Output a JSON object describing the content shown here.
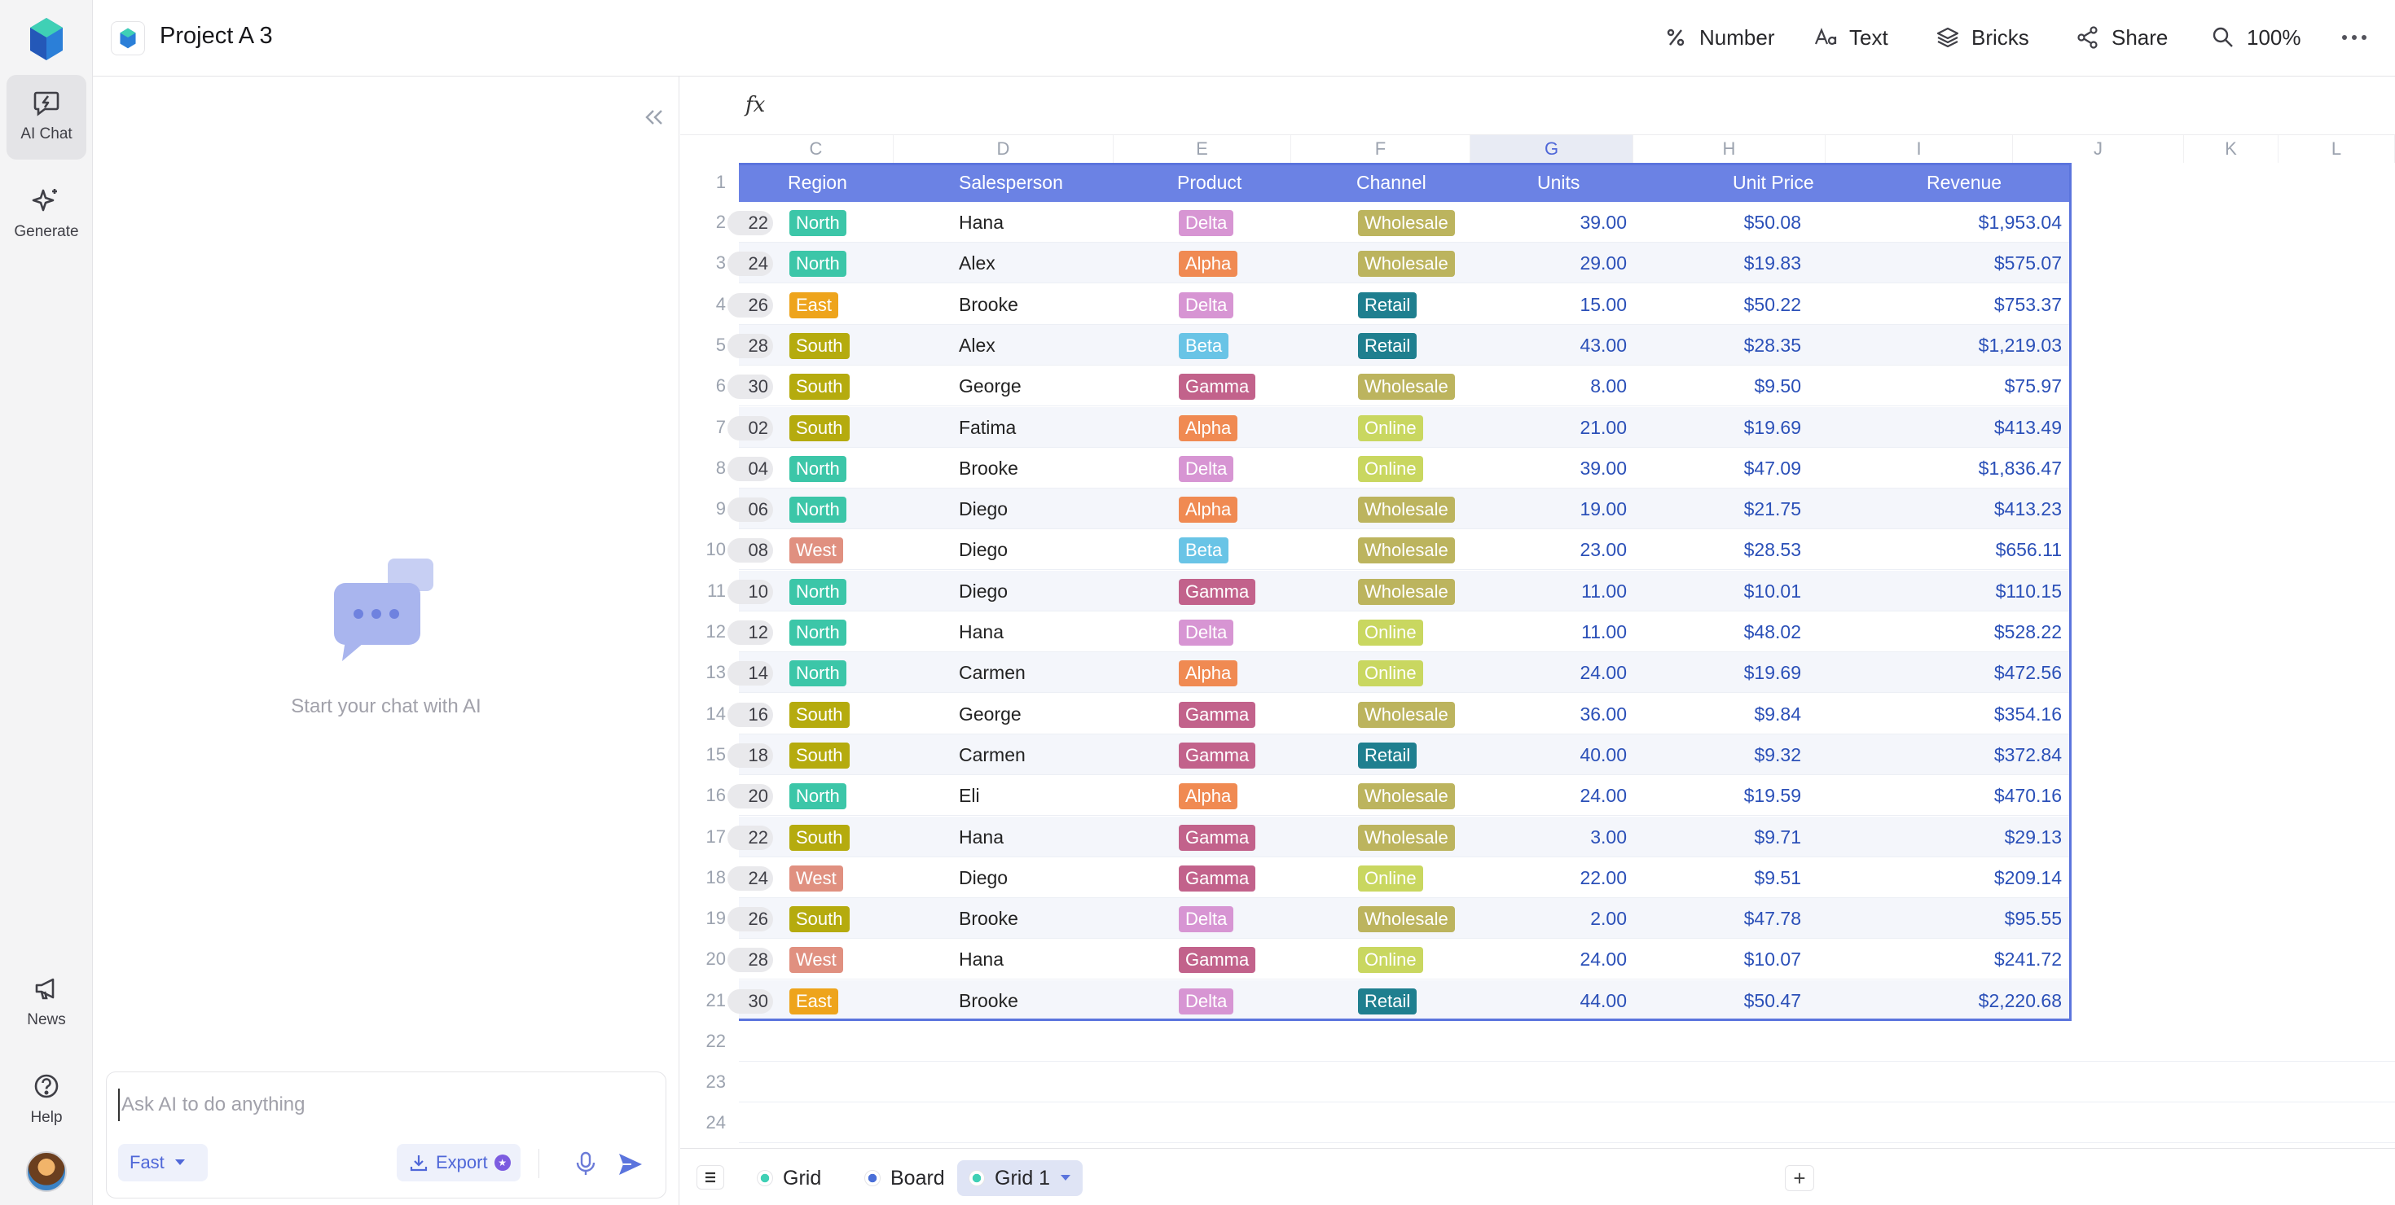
{
  "app": {
    "project_title": "Project A 3"
  },
  "rail": {
    "items": [
      {
        "label": "AI Chat",
        "icon": "chat-bolt-icon"
      },
      {
        "label": "Generate",
        "icon": "sparkle-icon"
      },
      {
        "label": "News",
        "icon": "megaphone-icon"
      },
      {
        "label": "Help",
        "icon": "help-icon"
      }
    ]
  },
  "toolbar": {
    "number_label": "Number",
    "text_label": "Text",
    "bricks_label": "Bricks",
    "share_label": "Share",
    "zoom_label": "100%"
  },
  "chat": {
    "empty_text": "Start your chat with AI",
    "input_placeholder": "Ask AI to do anything",
    "mode_label": "Fast",
    "export_label": "Export"
  },
  "sheet": {
    "fx_label": "fx",
    "columns": [
      "C",
      "D",
      "E",
      "F",
      "G",
      "H",
      "I",
      "J",
      "K",
      "L"
    ],
    "headers": [
      "Region",
      "Salesperson",
      "Product",
      "Channel",
      "Units",
      "Unit Price",
      "Revenue"
    ],
    "rows": [
      {
        "n": "2",
        "prev": "22",
        "region": "North",
        "sales": "Hana",
        "product": "Delta",
        "channel": "Wholesale",
        "units": "39.00",
        "price": "$50.08",
        "rev": "$1,953.04"
      },
      {
        "n": "3",
        "prev": "24",
        "region": "North",
        "sales": "Alex",
        "product": "Alpha",
        "channel": "Wholesale",
        "units": "29.00",
        "price": "$19.83",
        "rev": "$575.07"
      },
      {
        "n": "4",
        "prev": "26",
        "region": "East",
        "sales": "Brooke",
        "product": "Delta",
        "channel": "Retail",
        "units": "15.00",
        "price": "$50.22",
        "rev": "$753.37"
      },
      {
        "n": "5",
        "prev": "28",
        "region": "South",
        "sales": "Alex",
        "product": "Beta",
        "channel": "Retail",
        "units": "43.00",
        "price": "$28.35",
        "rev": "$1,219.03"
      },
      {
        "n": "6",
        "prev": "30",
        "region": "South",
        "sales": "George",
        "product": "Gamma",
        "channel": "Wholesale",
        "units": "8.00",
        "price": "$9.50",
        "rev": "$75.97"
      },
      {
        "n": "7",
        "prev": "02",
        "region": "South",
        "sales": "Fatima",
        "product": "Alpha",
        "channel": "Online",
        "units": "21.00",
        "price": "$19.69",
        "rev": "$413.49"
      },
      {
        "n": "8",
        "prev": "04",
        "region": "North",
        "sales": "Brooke",
        "product": "Delta",
        "channel": "Online",
        "units": "39.00",
        "price": "$47.09",
        "rev": "$1,836.47"
      },
      {
        "n": "9",
        "prev": "06",
        "region": "North",
        "sales": "Diego",
        "product": "Alpha",
        "channel": "Wholesale",
        "units": "19.00",
        "price": "$21.75",
        "rev": "$413.23"
      },
      {
        "n": "10",
        "prev": "08",
        "region": "West",
        "sales": "Diego",
        "product": "Beta",
        "channel": "Wholesale",
        "units": "23.00",
        "price": "$28.53",
        "rev": "$656.11"
      },
      {
        "n": "11",
        "prev": "10",
        "region": "North",
        "sales": "Diego",
        "product": "Gamma",
        "channel": "Wholesale",
        "units": "11.00",
        "price": "$10.01",
        "rev": "$110.15"
      },
      {
        "n": "12",
        "prev": "12",
        "region": "North",
        "sales": "Hana",
        "product": "Delta",
        "channel": "Online",
        "units": "11.00",
        "price": "$48.02",
        "rev": "$528.22"
      },
      {
        "n": "13",
        "prev": "14",
        "region": "North",
        "sales": "Carmen",
        "product": "Alpha",
        "channel": "Online",
        "units": "24.00",
        "price": "$19.69",
        "rev": "$472.56"
      },
      {
        "n": "14",
        "prev": "16",
        "region": "South",
        "sales": "George",
        "product": "Gamma",
        "channel": "Wholesale",
        "units": "36.00",
        "price": "$9.84",
        "rev": "$354.16"
      },
      {
        "n": "15",
        "prev": "18",
        "region": "South",
        "sales": "Carmen",
        "product": "Gamma",
        "channel": "Retail",
        "units": "40.00",
        "price": "$9.32",
        "rev": "$372.84"
      },
      {
        "n": "16",
        "prev": "20",
        "region": "North",
        "sales": "Eli",
        "product": "Alpha",
        "channel": "Wholesale",
        "units": "24.00",
        "price": "$19.59",
        "rev": "$470.16"
      },
      {
        "n": "17",
        "prev": "22",
        "region": "South",
        "sales": "Hana",
        "product": "Gamma",
        "channel": "Wholesale",
        "units": "3.00",
        "price": "$9.71",
        "rev": "$29.13"
      },
      {
        "n": "18",
        "prev": "24",
        "region": "West",
        "sales": "Diego",
        "product": "Gamma",
        "channel": "Online",
        "units": "22.00",
        "price": "$9.51",
        "rev": "$209.14"
      },
      {
        "n": "19",
        "prev": "26",
        "region": "South",
        "sales": "Brooke",
        "product": "Delta",
        "channel": "Wholesale",
        "units": "2.00",
        "price": "$47.78",
        "rev": "$95.55"
      },
      {
        "n": "20",
        "prev": "28",
        "region": "West",
        "sales": "Hana",
        "product": "Gamma",
        "channel": "Online",
        "units": "24.00",
        "price": "$10.07",
        "rev": "$241.72"
      },
      {
        "n": "21",
        "prev": "30",
        "region": "East",
        "sales": "Brooke",
        "product": "Delta",
        "channel": "Retail",
        "units": "44.00",
        "price": "$50.47",
        "rev": "$2,220.68"
      }
    ],
    "empty_rows": [
      "22",
      "23",
      "24"
    ],
    "header_row_number": "1",
    "tag_colors": {
      "North": "#3cc6a8",
      "South": "#b5ab0e",
      "East": "#eea41c",
      "West": "#e09080",
      "Delta": "#d795d3",
      "Alpha": "#f08a52",
      "Beta": "#69c4e6",
      "Gamma": "#c2628b",
      "Wholesale": "#bcb45e",
      "Retail": "#1f7f8f",
      "Online": "#c9d760"
    }
  },
  "tabs": {
    "items": [
      {
        "label": "Grid"
      },
      {
        "label": "Board"
      },
      {
        "label": "Grid 1"
      }
    ]
  }
}
